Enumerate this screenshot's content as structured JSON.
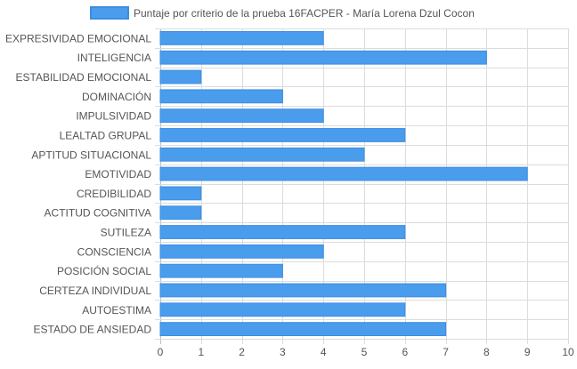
{
  "chart_data": {
    "type": "bar",
    "orientation": "horizontal",
    "categories": [
      "EXPRESIVIDAD EMOCIONAL",
      "INTELIGENCIA",
      "ESTABILIDAD EMOCIONAL",
      "DOMINACIÓN",
      "IMPULSIVIDAD",
      "LEALTAD GRUPAL",
      "APTITUD SITUACIONAL",
      "EMOTIVIDAD",
      "CREDIBILIDAD",
      "ACTITUD COGNITIVA",
      "SUTILEZA",
      "CONSCIENCIA",
      "POSICIÓN SOCIAL",
      "CERTEZA INDIVIDUAL",
      "AUTOESTIMA",
      "ESTADO DE ANSIEDAD"
    ],
    "series": [
      {
        "name": "Puntaje por criterio de la prueba 16FACPER - María Lorena Dzul Cocon",
        "values": [
          4,
          8,
          1,
          3,
          4,
          6,
          5,
          9,
          1,
          1,
          6,
          4,
          3,
          7,
          6,
          7
        ],
        "color": "#4a9cec",
        "border_color": "#3d8ee0"
      }
    ],
    "xlim": [
      0,
      10
    ],
    "x_ticks": [
      "0",
      "1",
      "2",
      "3",
      "4",
      "5",
      "6",
      "7",
      "8",
      "9",
      "10"
    ],
    "title": "",
    "xlabel": "",
    "ylabel": "",
    "grid": true,
    "legend_position": "top",
    "grid_color": "#dcdcdc",
    "text_color": "#555555"
  }
}
